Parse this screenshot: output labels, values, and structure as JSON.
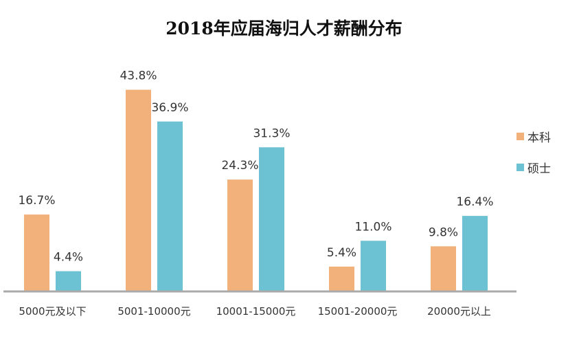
{
  "chart_data": {
    "type": "bar",
    "title": "2018年应届海归人才薪酬分布",
    "categories": [
      "5000元及以下",
      "5001-10000元",
      "10001-15000元",
      "15001-20000元",
      "20000元以上"
    ],
    "series": [
      {
        "name": "本科",
        "values": [
          16.7,
          43.8,
          24.3,
          5.4,
          9.8
        ],
        "labels": [
          "16.7%",
          "43.8%",
          "24.3%",
          "5.4%",
          "9.8%"
        ],
        "color": "#F2B07B"
      },
      {
        "name": "硕士",
        "values": [
          4.4,
          36.9,
          31.3,
          11.0,
          16.4
        ],
        "labels": [
          "4.4%",
          "36.9%",
          "31.3%",
          "11.0%",
          "16.4%"
        ],
        "color": "#6CC1D3"
      }
    ],
    "ylim": [
      0,
      45
    ],
    "grid": false,
    "legend": "right",
    "axis_color": "#AAAAAA"
  }
}
